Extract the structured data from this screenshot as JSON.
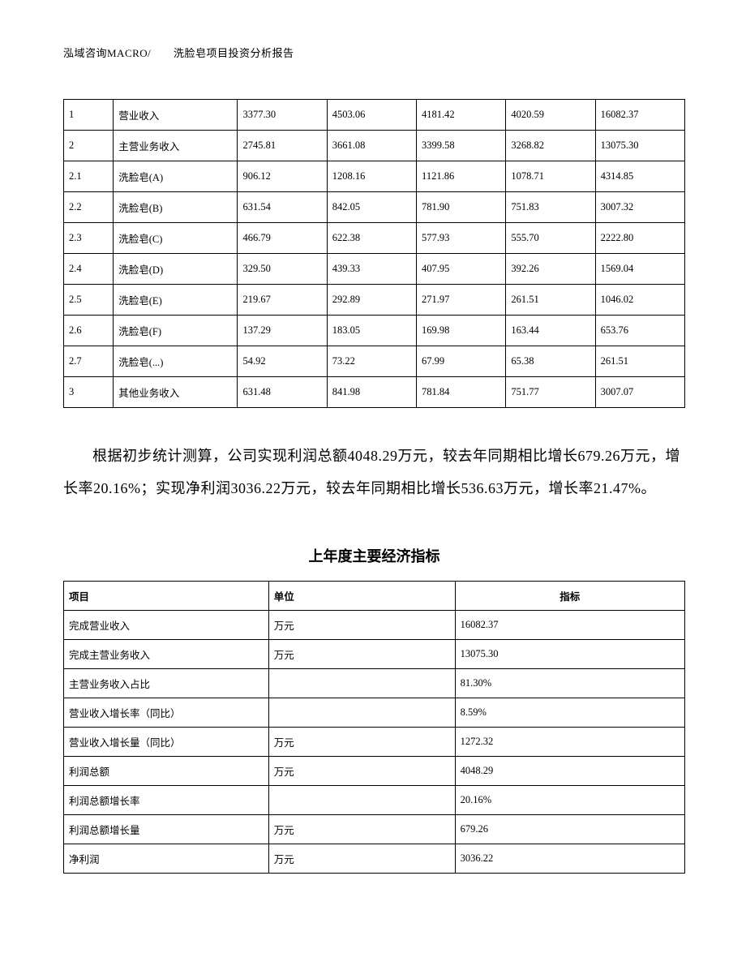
{
  "header": {
    "company": "泓域咨询MACRO/",
    "title": "洗脸皂项目投资分析报告"
  },
  "table1": {
    "rows": [
      [
        "1",
        "营业收入",
        "3377.30",
        "4503.06",
        "4181.42",
        "4020.59",
        "16082.37"
      ],
      [
        "2",
        "主营业务收入",
        "2745.81",
        "3661.08",
        "3399.58",
        "3268.82",
        "13075.30"
      ],
      [
        "2.1",
        "洗脸皂(A)",
        "906.12",
        "1208.16",
        "1121.86",
        "1078.71",
        "4314.85"
      ],
      [
        "2.2",
        "洗脸皂(B)",
        "631.54",
        "842.05",
        "781.90",
        "751.83",
        "3007.32"
      ],
      [
        "2.3",
        "洗脸皂(C)",
        "466.79",
        "622.38",
        "577.93",
        "555.70",
        "2222.80"
      ],
      [
        "2.4",
        "洗脸皂(D)",
        "329.50",
        "439.33",
        "407.95",
        "392.26",
        "1569.04"
      ],
      [
        "2.5",
        "洗脸皂(E)",
        "219.67",
        "292.89",
        "271.97",
        "261.51",
        "1046.02"
      ],
      [
        "2.6",
        "洗脸皂(F)",
        "137.29",
        "183.05",
        "169.98",
        "163.44",
        "653.76"
      ],
      [
        "2.7",
        "洗脸皂(...)",
        "54.92",
        "73.22",
        "67.99",
        "65.38",
        "261.51"
      ],
      [
        "3",
        "其他业务收入",
        "631.48",
        "841.98",
        "781.84",
        "751.77",
        "3007.07"
      ]
    ]
  },
  "paragraph": "根据初步统计测算，公司实现利润总额4048.29万元，较去年同期相比增长679.26万元，增长率20.16%；实现净利润3036.22万元，较去年同期相比增长536.63万元，增长率21.47%。",
  "section_title": "上年度主要经济指标",
  "table2": {
    "headers": [
      "项目",
      "单位",
      "指标"
    ],
    "rows": [
      [
        "完成营业收入",
        "万元",
        "16082.37"
      ],
      [
        "完成主营业务收入",
        "万元",
        "13075.30"
      ],
      [
        "主营业务收入占比",
        "",
        "81.30%"
      ],
      [
        "营业收入增长率（同比）",
        "",
        "8.59%"
      ],
      [
        "营业收入增长量（同比）",
        "万元",
        "1272.32"
      ],
      [
        "利润总额",
        "万元",
        "4048.29"
      ],
      [
        "利润总额增长率",
        "",
        "20.16%"
      ],
      [
        "利润总额增长量",
        "万元",
        "679.26"
      ],
      [
        "净利润",
        "万元",
        "3036.22"
      ]
    ]
  }
}
